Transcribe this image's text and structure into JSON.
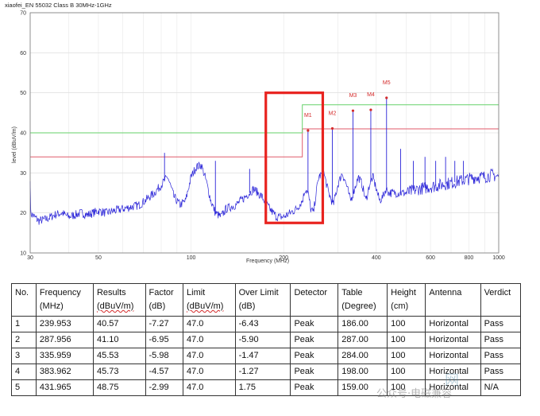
{
  "chart_data": {
    "type": "line",
    "title": "xiaofei_EN 55032 Class B 30MHz-1GHz",
    "xlabel": "Frequency (MHz)",
    "ylabel": "level (dBuV/m)",
    "xscale": "log",
    "xlim": [
      30,
      1000
    ],
    "ylim": [
      10,
      70
    ],
    "xticks": [
      30,
      50,
      100,
      200,
      400,
      600,
      800,
      1000
    ],
    "xtick_labels": [
      "30",
      "50",
      "100",
      "200",
      "400",
      "600",
      "800",
      "1000"
    ],
    "yticks": [
      10,
      20,
      30,
      40,
      50,
      60,
      70
    ],
    "grid": true,
    "series": [
      {
        "role": "measurement",
        "color": "#2a24d8",
        "x": [
          30,
          32,
          34,
          36,
          38,
          40,
          42,
          44,
          46,
          48,
          50,
          53,
          56,
          60,
          64,
          68,
          72,
          76,
          80,
          84,
          88,
          92,
          96,
          100,
          104,
          108,
          112,
          116,
          120,
          125,
          130,
          140,
          150,
          160,
          170,
          180,
          190,
          200,
          210,
          220,
          230,
          235,
          240,
          245,
          250,
          255,
          260,
          270,
          280,
          290,
          300,
          310,
          320,
          330,
          340,
          350,
          360,
          370,
          380,
          390,
          400,
          410,
          420,
          430,
          440,
          460,
          480,
          500,
          550,
          600,
          650,
          700,
          750,
          800,
          850,
          900,
          950,
          1000
        ],
        "values": [
          20,
          18,
          18.5,
          19.5,
          20,
          19,
          19.5,
          20,
          19.5,
          20,
          20.5,
          20,
          20.5,
          21,
          21.5,
          22,
          23.5,
          25,
          27,
          29,
          24,
          22,
          23,
          29,
          31.5,
          32,
          28,
          23,
          20,
          19,
          21,
          22,
          24,
          26,
          24,
          21,
          19,
          19,
          20,
          21,
          23,
          26,
          25,
          21,
          20,
          25,
          29,
          30,
          25,
          22,
          27,
          30,
          27,
          23,
          26,
          29,
          27,
          23,
          27,
          29,
          26,
          23,
          24,
          26,
          25,
          25,
          25,
          25,
          26,
          26.5,
          27,
          27.5,
          28,
          28.5,
          29,
          29,
          29.5,
          29
        ]
      },
      {
        "role": "limit",
        "name": "limit",
        "color": "#e05a6a",
        "x": [
          30,
          230,
          230,
          1000
        ],
        "values": [
          34,
          34,
          41,
          41
        ]
      },
      {
        "role": "margin",
        "name": "margin",
        "color": "#66d16a",
        "x": [
          30,
          230,
          230,
          1000
        ],
        "values": [
          40,
          40,
          47,
          47
        ]
      }
    ],
    "spikes": [
      {
        "x": 82,
        "y": 35
      },
      {
        "x": 120,
        "y": 33
      },
      {
        "x": 155,
        "y": 31
      },
      {
        "x": 239.953,
        "y": 40.57
      },
      {
        "x": 287.956,
        "y": 41.1
      },
      {
        "x": 335.959,
        "y": 45.53
      },
      {
        "x": 383.962,
        "y": 45.73
      },
      {
        "x": 431.965,
        "y": 48.75
      },
      {
        "x": 480,
        "y": 36
      },
      {
        "x": 528,
        "y": 33
      },
      {
        "x": 576,
        "y": 34
      },
      {
        "x": 624,
        "y": 33
      },
      {
        "x": 672,
        "y": 34
      },
      {
        "x": 720,
        "y": 33
      },
      {
        "x": 768,
        "y": 33
      }
    ],
    "markers": [
      {
        "label": "M1",
        "x": 239.953,
        "y": 40.57
      },
      {
        "label": "M2",
        "x": 287.956,
        "y": 41.1
      },
      {
        "label": "M3",
        "x": 335.959,
        "y": 45.53
      },
      {
        "label": "M4",
        "x": 383.962,
        "y": 45.73
      },
      {
        "label": "M5",
        "x": 431.965,
        "y": 48.75
      }
    ],
    "highlight_box": {
      "x": [
        175,
        268
      ],
      "y": [
        17.5,
        50
      ],
      "color": "#e8231f"
    }
  },
  "table": {
    "headers": [
      [
        "No.",
        ""
      ],
      [
        "Frequency",
        "(MHz)"
      ],
      [
        "Results",
        "(dBuV/m)"
      ],
      [
        "Factor",
        "(dB)"
      ],
      [
        "Limit",
        "(dBuV/m)"
      ],
      [
        "Over Limit",
        "(dB)"
      ],
      [
        "Detector",
        ""
      ],
      [
        "Table",
        "(Degree)"
      ],
      [
        "Height",
        "(cm)"
      ],
      [
        "Antenna",
        ""
      ],
      [
        "Verdict",
        ""
      ]
    ],
    "rows": [
      [
        "1",
        "239.953",
        "40.57",
        "-7.27",
        "47.0",
        "-6.43",
        "Peak",
        "186.00",
        "100",
        "Horizontal",
        "Pass"
      ],
      [
        "2",
        "287.956",
        "41.10",
        "-6.95",
        "47.0",
        "-5.90",
        "Peak",
        "287.00",
        "100",
        "Horizontal",
        "Pass"
      ],
      [
        "3",
        "335.959",
        "45.53",
        "-5.98",
        "47.0",
        "-1.47",
        "Peak",
        "284.00",
        "100",
        "Horizontal",
        "Pass"
      ],
      [
        "4",
        "383.962",
        "45.73",
        "-4.57",
        "47.0",
        "-1.27",
        "Peak",
        "198.00",
        "100",
        "Horizontal",
        "Pass"
      ],
      [
        "5",
        "431.965",
        "48.75",
        "-2.99",
        "47.0",
        "1.75",
        "Peak",
        "159.00",
        "100",
        "Horizontal",
        "N/A"
      ]
    ]
  },
  "watermark": {
    "text": "公众号·电磁兼容",
    "text2": "网"
  }
}
